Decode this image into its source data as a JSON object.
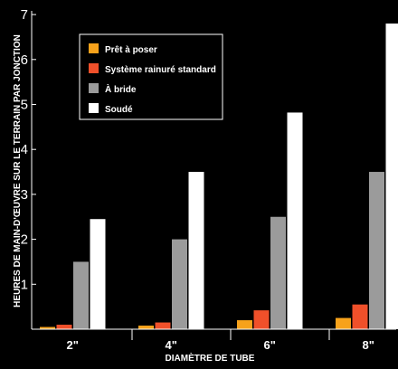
{
  "chart_data": {
    "type": "bar",
    "title": "",
    "xlabel": "DIAMÈTRE DE TUBE",
    "ylabel": "HEURES DE MAIN-D'ŒUVRE SUR LE TERRAIN PAR JONCTION",
    "categories": [
      "2\"",
      "4\"",
      "6\"",
      "8\""
    ],
    "ylim": [
      0,
      7
    ],
    "yticks": [
      "1",
      "2",
      "3",
      "4",
      "5",
      "6",
      "7"
    ],
    "grid": false,
    "legend_position": "top-left",
    "series": [
      {
        "name": "Prêt à poser",
        "color": "#f7a21b",
        "values": [
          0.05,
          0.08,
          0.2,
          0.25
        ]
      },
      {
        "name": "Système rainuré standard",
        "color": "#f0502a",
        "values": [
          0.1,
          0.15,
          0.42,
          0.55
        ]
      },
      {
        "name": "À bride",
        "color": "#9b9b9b",
        "values": [
          1.5,
          2.0,
          2.5,
          3.5
        ]
      },
      {
        "name": "Soudé",
        "color": "#ffffff",
        "values": [
          2.45,
          3.5,
          4.82,
          6.8
        ]
      }
    ]
  }
}
